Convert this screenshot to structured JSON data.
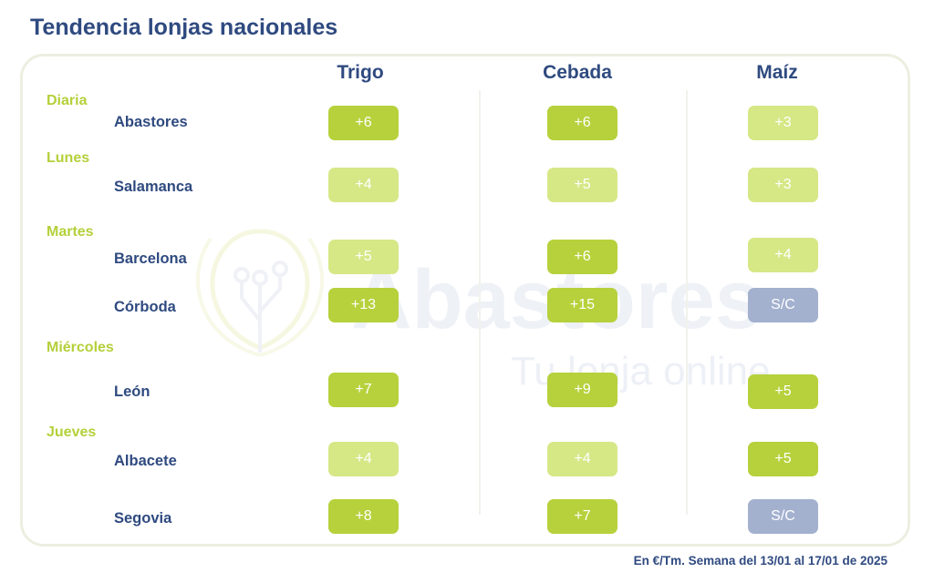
{
  "title": "Tendencia lonjas nacionales",
  "columns": [
    "Trigo",
    "Cebada",
    "Maíz"
  ],
  "days": [
    "Diaria",
    "Lunes",
    "Martes",
    "Miércoles",
    "Jueves"
  ],
  "rows": [
    {
      "city": "Abastores",
      "values": [
        "+6",
        "+6",
        "+3"
      ],
      "levels": [
        "strong",
        "strong",
        "light"
      ]
    },
    {
      "city": "Salamanca",
      "values": [
        "+4",
        "+5",
        "+3"
      ],
      "levels": [
        "light",
        "light",
        "light"
      ]
    },
    {
      "city": "Barcelona",
      "values": [
        "+5",
        "+6",
        "+4"
      ],
      "levels": [
        "light",
        "strong",
        "light"
      ]
    },
    {
      "city": "Córboda",
      "values": [
        "+13",
        "+15",
        "S/C"
      ],
      "levels": [
        "strong",
        "strong",
        "sc"
      ]
    },
    {
      "city": "León",
      "values": [
        "+7",
        "+9",
        "+5"
      ],
      "levels": [
        "strong",
        "strong",
        "strong"
      ]
    },
    {
      "city": "Albacete",
      "values": [
        "+4",
        "+4",
        "+5"
      ],
      "levels": [
        "light",
        "light",
        "strong"
      ]
    },
    {
      "city": "Segovia",
      "values": [
        "+8",
        "+7",
        "S/C"
      ],
      "levels": [
        "strong",
        "strong",
        "sc"
      ]
    }
  ],
  "watermark": {
    "brand": "Abastores",
    "tagline": "Tu lonja online"
  },
  "footer": "En €/Tm. Semana del 13/01 al 17/01 de 2025",
  "colors": {
    "strong": "#b6d13c",
    "light": "#d6e786",
    "sc": "#a3b1cf",
    "title": "#2f4a80",
    "day": "#b4d03a"
  }
}
